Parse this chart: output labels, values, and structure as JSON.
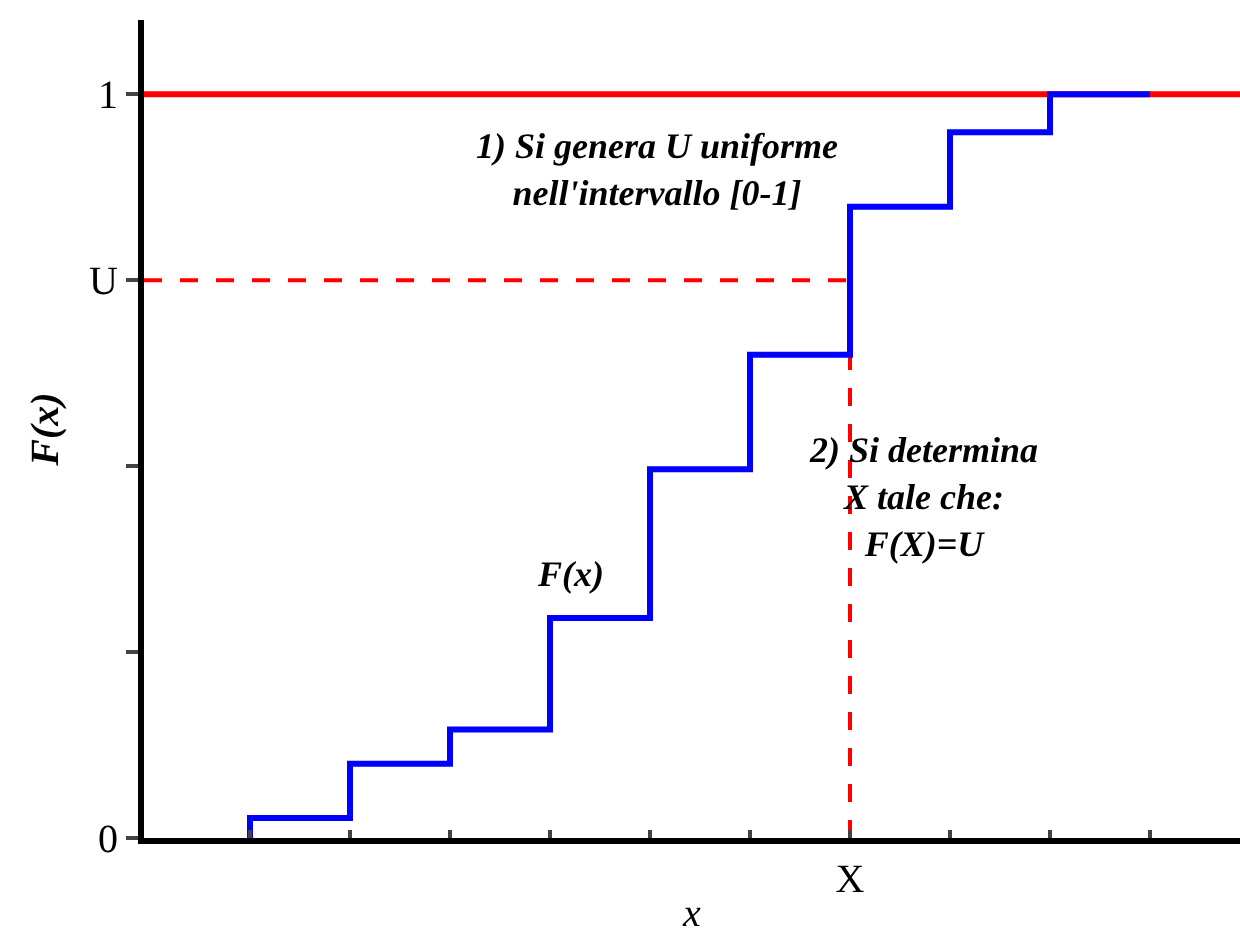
{
  "chart_data": {
    "type": "step",
    "categories": [
      null,
      null,
      null,
      null,
      null,
      null,
      "X",
      null,
      null,
      null
    ],
    "series": [
      {
        "name": "F(x)",
        "color": "#0000ff",
        "values": [
          0,
          0.027,
          0.1,
          0.146,
          0.296,
          0.496,
          0.65,
          0.849,
          0.949,
          1.0
        ]
      }
    ],
    "xlabel": "x",
    "ylabel": "F(x)",
    "ylim": [
      0,
      1.1
    ],
    "yticks": [
      0,
      {
        "value": 0.25,
        "label": null
      },
      {
        "value": 0.5,
        "label": null
      },
      {
        "value": 0.75,
        "label": "U"
      },
      1
    ],
    "ref_lines": [
      {
        "axis": "y",
        "value": 1,
        "color": "#ff0000",
        "line_style": "solid"
      },
      {
        "axis": "y",
        "value": 0.75,
        "color": "#ff0000",
        "line_style": "dashed"
      },
      {
        "axis": "x",
        "value": "X",
        "color": "#ff0000",
        "line_style": "dashed"
      }
    ],
    "annotations": [
      "1) Si genera U uniforme\nnell'intervallo [0-1]",
      "2) Si determina\nX tale che:\nF(X)=U"
    ],
    "grid": false,
    "legend": false,
    "marker": "none",
    "line_style": "solid"
  }
}
